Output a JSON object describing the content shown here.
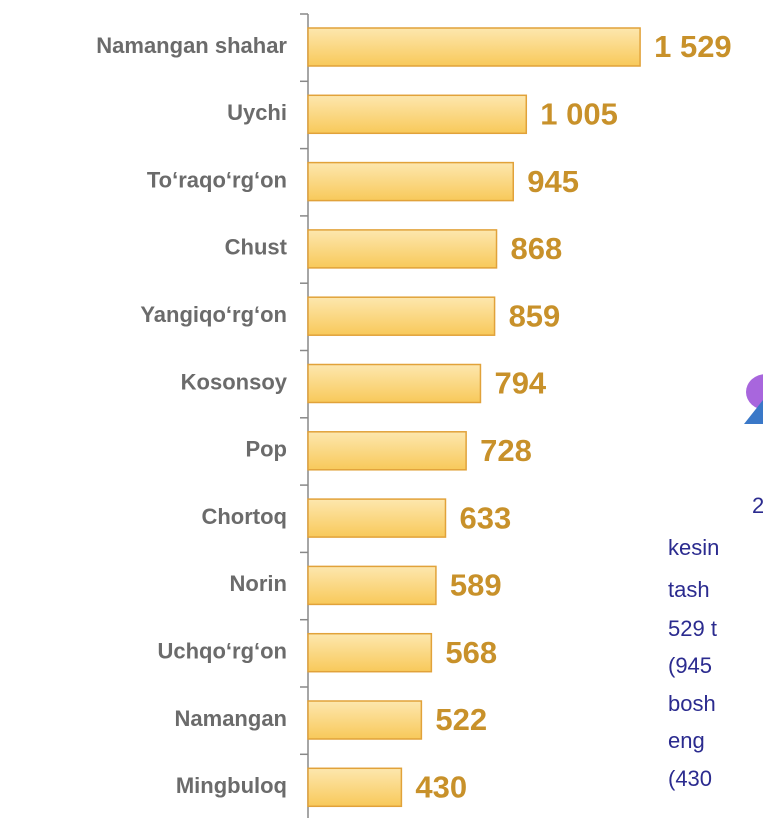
{
  "chart_data": {
    "type": "barh",
    "categories": [
      "Namangan shahar",
      "Uychi",
      "To‘raqo‘rg‘on",
      "Chust",
      "Yangiqo‘rg‘on",
      "Kosonsoy",
      "Pop",
      "Chortoq",
      "Norin",
      "Uchqo‘rg‘on",
      "Namangan",
      "Mingbuloq"
    ],
    "values": [
      1529,
      1005,
      945,
      868,
      859,
      794,
      728,
      633,
      589,
      568,
      522,
      430
    ],
    "value_labels": [
      "1 529",
      "1 005",
      "945",
      "868",
      "859",
      "794",
      "728",
      "633",
      "589",
      "568",
      "522",
      "430"
    ],
    "color": "#fcd880",
    "annotations": [
      "2",
      "kesin",
      "tash",
      "529 t",
      "(945",
      "bosh",
      "eng",
      "(430"
    ]
  }
}
